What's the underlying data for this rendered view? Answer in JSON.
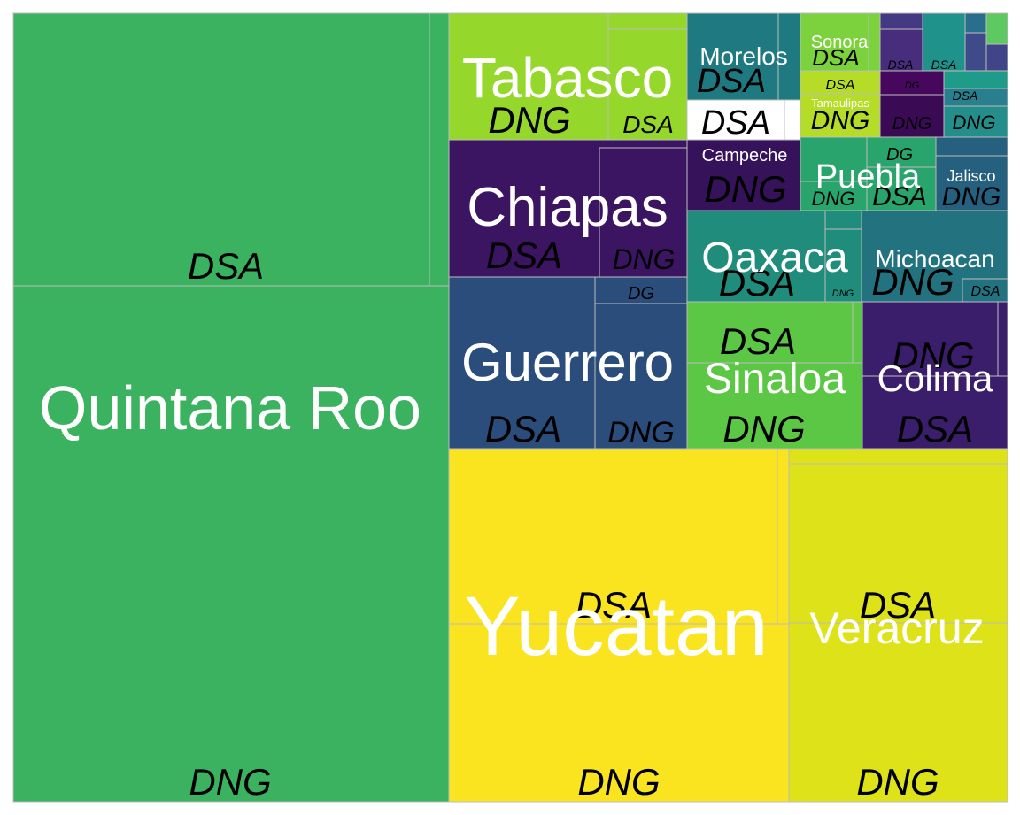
{
  "chart_data": {
    "type": "treemap",
    "title": "",
    "states": [
      {
        "name": "Quintana Roo",
        "color": "#3bb25f",
        "categories": [
          {
            "label": "DSA"
          },
          {
            "label": "DNG"
          }
        ]
      },
      {
        "name": "Yucatan",
        "color": "#fae31f",
        "categories": [
          {
            "label": "DSA"
          },
          {
            "label": "DNG"
          }
        ]
      },
      {
        "name": "Veracruz",
        "color": "#dde318",
        "categories": [
          {
            "label": "DSA"
          },
          {
            "label": "DNG"
          }
        ]
      },
      {
        "name": "Tabasco",
        "color": "#95d72a",
        "categories": [
          {
            "label": "DNG"
          },
          {
            "label": "DSA"
          }
        ]
      },
      {
        "name": "Chiapas",
        "color": "#3b1462",
        "categories": [
          {
            "label": "DSA"
          },
          {
            "label": "DNG"
          }
        ]
      },
      {
        "name": "Guerrero",
        "color": "#2b4d7c",
        "categories": [
          {
            "label": "DSA"
          },
          {
            "label": "DNG"
          },
          {
            "label": "DG"
          }
        ]
      },
      {
        "name": "Sinaloa",
        "color": "#5cc744",
        "categories": [
          {
            "label": "DSA"
          },
          {
            "label": "DNG"
          }
        ]
      },
      {
        "name": "Colima",
        "color": "#3a1d6b",
        "categories": [
          {
            "label": "DNG"
          },
          {
            "label": "DSA"
          }
        ]
      },
      {
        "name": "Oaxaca",
        "color": "#1f8c7c",
        "categories": [
          {
            "label": "DSA"
          },
          {
            "label": "DNG"
          }
        ]
      },
      {
        "name": "Michoacan",
        "color": "#22727f",
        "categories": [
          {
            "label": "DNG"
          },
          {
            "label": "DSA"
          }
        ]
      },
      {
        "name": "Morelos",
        "color": "#1e7a80",
        "categories": [
          {
            "label": "DSA"
          },
          {
            "label": "DSA"
          }
        ]
      },
      {
        "name": "Campeche",
        "color": "#35125a",
        "categories": [
          {
            "label": "DNG"
          }
        ]
      },
      {
        "name": "Puebla",
        "color": "#28a46c",
        "categories": [
          {
            "label": "DNG"
          },
          {
            "label": "DSA"
          },
          {
            "label": "DG"
          }
        ]
      },
      {
        "name": "Jalisco",
        "color": "#26607f",
        "categories": [
          {
            "label": "DNG"
          }
        ]
      },
      {
        "name": "Sonora",
        "color": "#7bd23d",
        "categories": [
          {
            "label": "DSA"
          }
        ]
      },
      {
        "name": "Tamaulipas",
        "color": "#b5dd27",
        "categories": [
          {
            "label": "DSA"
          },
          {
            "label": "DNG"
          }
        ]
      }
    ],
    "small_labels": [
      "DSA",
      "DSA",
      "DSA",
      "DG",
      "DNG",
      "DNG",
      "DNG"
    ]
  }
}
